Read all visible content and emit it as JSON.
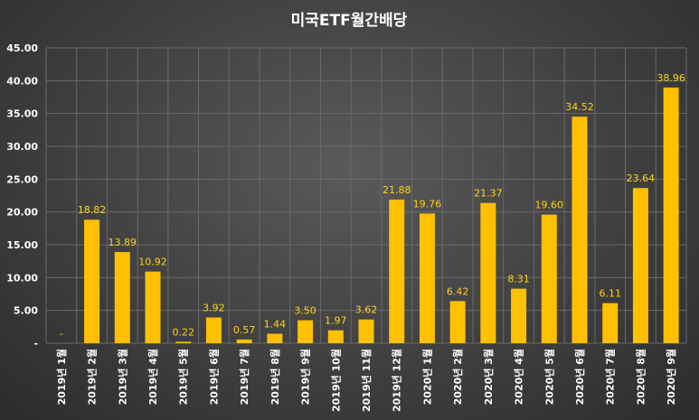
{
  "chart_data": {
    "type": "bar",
    "title": "미국ETF월간배당",
    "categories": [
      "2019년 1월",
      "2019년 2월",
      "2019년 3월",
      "2019년 4월",
      "2019년 5월",
      "2019년 6월",
      "2019년 7월",
      "2019년 8월",
      "2019년 9월",
      "2019년 10월",
      "2019년 11월",
      "2019년 12월",
      "2020년 1월",
      "2020년 2월",
      "2020년 3월",
      "2020년 4월",
      "2020년 5월",
      "2020년 6월",
      "2020년 7월",
      "2020년 8월",
      "2020년 9월"
    ],
    "values": [
      0,
      18.82,
      13.89,
      10.92,
      0.22,
      3.92,
      0.57,
      1.44,
      3.5,
      1.97,
      3.62,
      21.88,
      19.76,
      6.42,
      21.37,
      8.31,
      19.6,
      34.52,
      6.11,
      23.64,
      38.96
    ],
    "data_labels": [
      "-",
      "18.82",
      "13.89",
      "10.92",
      "0.22",
      "3.92",
      "0.57",
      "1.44",
      "3.50",
      "1.97",
      "3.62",
      "21.88",
      "19.76",
      "6.42",
      "21.37",
      "8.31",
      "19.60",
      "34.52",
      "6.11",
      "23.64",
      "38.96"
    ],
    "yticks": [
      "-",
      "5.00",
      "10.00",
      "15.00",
      "20.00",
      "25.00",
      "30.00",
      "35.00",
      "40.00",
      "45.00"
    ],
    "ylim": [
      0,
      45
    ],
    "grid": true,
    "bar_color": "#ffc000",
    "label_color": "#ffd21a"
  }
}
